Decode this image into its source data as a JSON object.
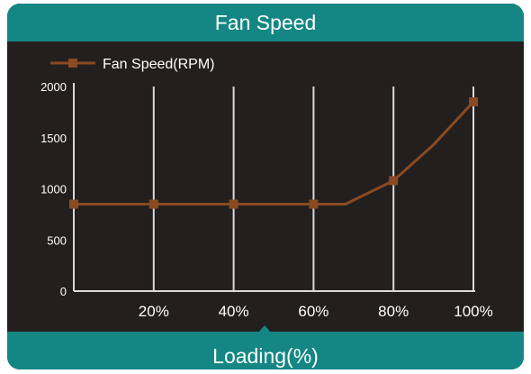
{
  "header": {
    "title": "Fan Speed"
  },
  "footer": {
    "xlabel": "Loading(%)"
  },
  "colors": {
    "background": "#231f1e",
    "bar": "#148784",
    "line": "#8a4a22",
    "grid": "#d9d9d9"
  },
  "chart_data": {
    "type": "line",
    "title": "Fan Speed",
    "xlabel": "Loading(%)",
    "ylabel": "",
    "x_tick_labels": [
      "20%",
      "40%",
      "60%",
      "80%",
      "100%"
    ],
    "y_ticks": [
      0,
      500,
      1000,
      1500,
      2000
    ],
    "xlim": [
      0,
      100
    ],
    "ylim": [
      0,
      2000
    ],
    "grid": "vertical",
    "legend": "top-left",
    "series": [
      {
        "name": "Fan Speed(RPM)",
        "color": "#8a4a22",
        "marker": "square",
        "points": [
          {
            "x": 0,
            "y": 850,
            "marker": true
          },
          {
            "x": 20,
            "y": 850,
            "marker": true
          },
          {
            "x": 40,
            "y": 850,
            "marker": true
          },
          {
            "x": 60,
            "y": 850,
            "marker": true
          },
          {
            "x": 68,
            "y": 850,
            "marker": false
          },
          {
            "x": 80,
            "y": 1080,
            "marker": true
          },
          {
            "x": 90,
            "y": 1430,
            "marker": false
          },
          {
            "x": 100,
            "y": 1850,
            "marker": true
          }
        ]
      }
    ]
  }
}
